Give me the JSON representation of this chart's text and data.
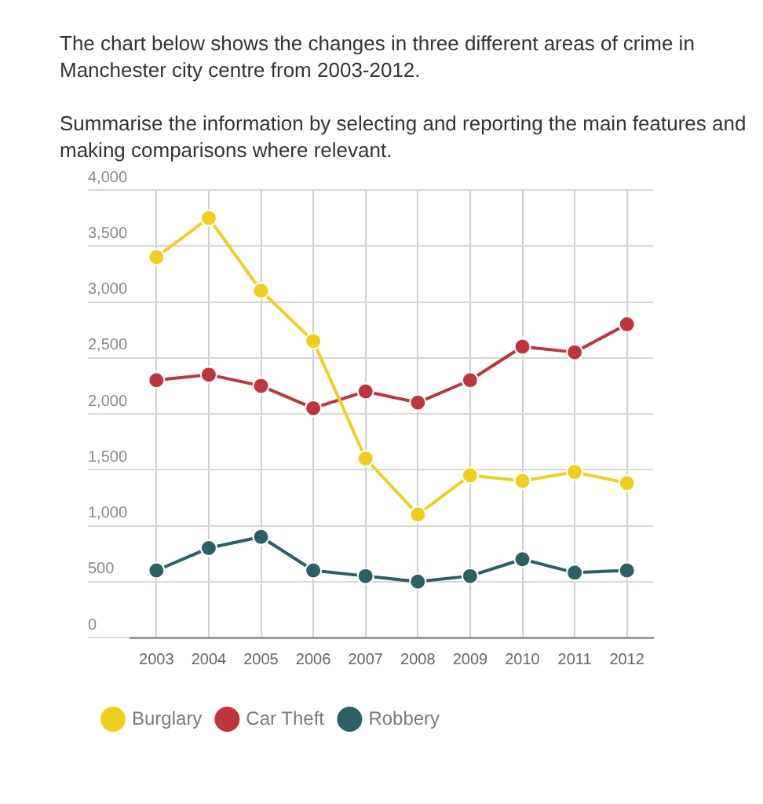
{
  "chart_data": {
    "type": "line",
    "title": "The chart below shows the changes in three different areas of crime in Manchester city centre from 2003-2012.",
    "subtitle": "Summarise the information by selecting and reporting the main features and making comparisons where relevant.",
    "categories": [
      "2003",
      "2004",
      "2005",
      "2006",
      "2007",
      "2008",
      "2009",
      "2010",
      "2011",
      "2012"
    ],
    "series": [
      {
        "name": "Burglary",
        "color": "#f0cf1c",
        "values": [
          3400,
          3750,
          3100,
          2650,
          1600,
          1100,
          1450,
          1400,
          1480,
          1380
        ]
      },
      {
        "name": "Car Theft",
        "color": "#c0353b",
        "values": [
          2300,
          2350,
          2250,
          2050,
          2200,
          2100,
          2300,
          2600,
          2550,
          2800
        ]
      },
      {
        "name": "Robbery",
        "color": "#2b6064",
        "values": [
          600,
          800,
          900,
          600,
          550,
          500,
          550,
          700,
          580,
          600
        ]
      }
    ],
    "ylim": [
      0,
      4000
    ],
    "yticks": [
      0,
      500,
      {
        "value": 1000,
        "label": "1,000"
      },
      {
        "value": 1500,
        "label": "1,500"
      },
      {
        "value": 2000,
        "label": "2,000"
      },
      {
        "value": 2500,
        "label": "2,500"
      },
      {
        "value": 3000,
        "label": "3,000"
      },
      {
        "value": 3500,
        "label": "3,500"
      },
      {
        "value": 4000,
        "label": "4,000"
      }
    ],
    "grid": true,
    "legend": "bottom left",
    "marker": "circle",
    "line_style": "solid"
  }
}
